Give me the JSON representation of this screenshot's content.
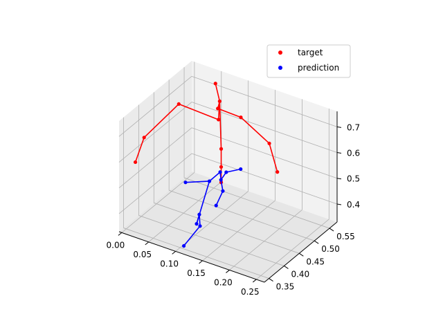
{
  "chart_data": {
    "type": "scatter",
    "projection": "3d",
    "title": "",
    "xlabel": "",
    "ylabel": "",
    "zlabel": "",
    "grid": true,
    "legend": {
      "placement": "top-right",
      "entries": [
        "target",
        "prediction"
      ]
    },
    "axes": {
      "x": {
        "ticks": [
          0.0,
          0.05,
          0.1,
          0.15,
          0.2,
          0.25
        ],
        "tick_labels": [
          "0.00",
          "0.05",
          "0.10",
          "0.15",
          "0.20",
          "0.25"
        ],
        "range": [
          -0.005,
          0.265
        ]
      },
      "y": {
        "ticks": [
          0.35,
          0.4,
          0.45,
          0.5,
          0.55
        ],
        "tick_labels": [
          "0.35",
          "0.40",
          "0.45",
          "0.50",
          "0.55"
        ],
        "range": [
          0.335,
          0.575
        ]
      },
      "z": {
        "ticks": [
          0.4,
          0.5,
          0.6,
          0.7
        ],
        "tick_labels": [
          "0.4",
          "0.5",
          "0.6",
          "0.7"
        ],
        "range": [
          0.33,
          0.76
        ]
      }
    },
    "series": [
      {
        "name": "target",
        "color": "#ff0000",
        "points": [
          [
            0.07,
            0.52,
            0.78
          ],
          [
            0.075,
            0.525,
            0.71
          ],
          [
            0.07,
            0.53,
            0.63
          ],
          [
            0.03,
            0.47,
            0.72
          ],
          [
            0.005,
            0.4,
            0.64
          ],
          [
            0.0,
            0.38,
            0.56
          ],
          [
            0.08,
            0.51,
            0.7
          ],
          [
            0.12,
            0.515,
            0.69
          ],
          [
            0.17,
            0.52,
            0.62
          ],
          [
            0.185,
            0.52,
            0.52
          ],
          [
            0.075,
            0.53,
            0.52
          ],
          [
            0.075,
            0.53,
            0.45
          ],
          [
            0.075,
            0.53,
            0.39
          ]
        ],
        "edges": [
          [
            0,
            1
          ],
          [
            1,
            2
          ],
          [
            2,
            3
          ],
          [
            3,
            4
          ],
          [
            4,
            5
          ],
          [
            1,
            6
          ],
          [
            6,
            7
          ],
          [
            7,
            8
          ],
          [
            8,
            9
          ],
          [
            1,
            10
          ],
          [
            10,
            11
          ],
          [
            11,
            12
          ]
        ]
      },
      {
        "name": "prediction",
        "color": "#0000ff",
        "points": [
          [
            0.1,
            0.55,
            0.44
          ],
          [
            0.09,
            0.52,
            0.45
          ],
          [
            0.083,
            0.515,
            0.42
          ],
          [
            0.09,
            0.5,
            0.47
          ],
          [
            0.07,
            0.5,
            0.42
          ],
          [
            0.065,
            0.43,
            0.48
          ],
          [
            0.095,
            0.5,
            0.4
          ],
          [
            0.105,
            0.46,
            0.39
          ],
          [
            0.08,
            0.44,
            0.32
          ],
          [
            0.085,
            0.44,
            0.36
          ],
          [
            0.092,
            0.43,
            0.33
          ],
          [
            0.09,
            0.38,
            0.3
          ]
        ],
        "edges": [
          [
            0,
            1
          ],
          [
            1,
            2
          ],
          [
            2,
            3
          ],
          [
            3,
            4
          ],
          [
            4,
            5
          ],
          [
            2,
            6
          ],
          [
            6,
            7
          ],
          [
            4,
            8
          ],
          [
            8,
            9
          ],
          [
            9,
            10
          ],
          [
            10,
            11
          ]
        ]
      }
    ]
  }
}
